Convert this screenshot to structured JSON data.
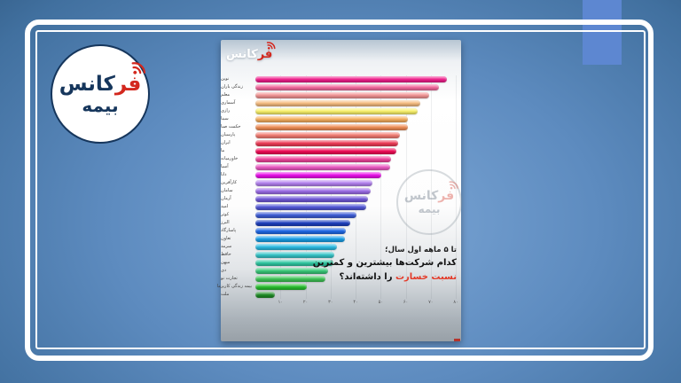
{
  "brand": {
    "badge_line1_red": "فر",
    "badge_line1_rest": "کانس",
    "badge_line2": "بیمه",
    "brand_red": "#d3281e",
    "brand_navy": "#16365c"
  },
  "card": {
    "logo_line1_red": "فر",
    "logo_line1_rest": "کانس",
    "watermark_line1_red": "فر",
    "watermark_line1_rest": "کانس",
    "watermark_line2": "بیمه",
    "title_line1": "تا ۵ ماهه اول سال؛",
    "title_line2": "کدام شرکت‌ها بیشترین و کمترین",
    "title_line3_highlight": "نسبت خسارت",
    "title_line3_rest": " را داشته‌اند؟",
    "title_highlight_color": "#e43a28"
  },
  "chart_data": {
    "type": "bar",
    "orientation": "horizontal",
    "title": "تا ۵ ماهه اول سال؛ کدام شرکت‌ها بیشترین و کمترین نسبت خسارت را داشته‌اند؟",
    "xlabel": "",
    "ylabel": "",
    "xlim": [
      0,
      80
    ],
    "grid": true,
    "legend": false,
    "x_ticks": [
      {
        "label": "۱۰",
        "value": 10
      },
      {
        "label": "۲۰",
        "value": 20
      },
      {
        "label": "۳۰",
        "value": 30
      },
      {
        "label": "۴۰",
        "value": 40
      },
      {
        "label": "۵۰",
        "value": 50
      },
      {
        "label": "۶۰",
        "value": 60
      },
      {
        "label": "۷۰",
        "value": 70
      },
      {
        "label": "۸۰",
        "value": 80
      }
    ],
    "series": [
      {
        "name": "نوین",
        "value": 76.4,
        "color": "#f01e8c"
      },
      {
        "name": "زندگی باران",
        "value": 73.2,
        "color": "#f4699e"
      },
      {
        "name": "معلم",
        "value": 69.3,
        "color": "#f29493"
      },
      {
        "name": "آسماری",
        "value": 66.0,
        "color": "#f6bc80"
      },
      {
        "name": "رازی",
        "value": 64.8,
        "color": "#faf26a"
      },
      {
        "name": "سینا",
        "value": 60.7,
        "color": "#f6ae5e"
      },
      {
        "name": "حکمت صبا",
        "value": 61.0,
        "color": "#f08d55"
      },
      {
        "name": "پارسیان",
        "value": 57.7,
        "color": "#f37c72"
      },
      {
        "name": "ایران",
        "value": 56.9,
        "color": "#ed3a55"
      },
      {
        "name": "ما",
        "value": 56.1,
        "color": "#f00a55"
      },
      {
        "name": "خاورمیانه",
        "value": 54.0,
        "color": "#f0459c"
      },
      {
        "name": "آسیا",
        "value": 53.8,
        "color": "#ec5ac4"
      },
      {
        "name": "دانا",
        "value": 50.4,
        "color": "#ea0fea"
      },
      {
        "name": "کارآفرین",
        "value": 46.6,
        "color": "#b381f0"
      },
      {
        "name": "سامان",
        "value": 46.0,
        "color": "#9c6ce8"
      },
      {
        "name": "آرمان",
        "value": 44.9,
        "color": "#7058d8"
      },
      {
        "name": "امید",
        "value": 44.4,
        "color": "#5056d6"
      },
      {
        "name": "کوثر",
        "value": 40.4,
        "color": "#3c5cd6"
      },
      {
        "name": "البرز",
        "value": 37.7,
        "color": "#1c3ebe"
      },
      {
        "name": "پاسارگاد",
        "value": 36.0,
        "color": "#1e68e8"
      },
      {
        "name": "تعاون",
        "value": 35.8,
        "color": "#169ee8"
      },
      {
        "name": "سرمد",
        "value": 32.7,
        "color": "#2cbce4"
      },
      {
        "name": "حافظ",
        "value": 31.4,
        "color": "#34c4c8"
      },
      {
        "name": "میهن",
        "value": 31.2,
        "color": "#2ec8a2"
      },
      {
        "name": "دی",
        "value": 29.1,
        "color": "#38c878"
      },
      {
        "name": "تجارت نو",
        "value": 27.9,
        "color": "#3ec455"
      },
      {
        "name": "بیمه زندگی کاریزما",
        "value": 20.5,
        "color": "#28be2e"
      },
      {
        "name": "ملت",
        "value": 7.6,
        "color": "#1f8c26"
      }
    ]
  }
}
